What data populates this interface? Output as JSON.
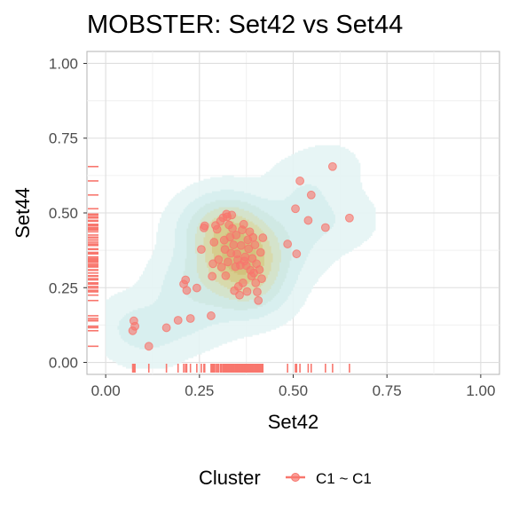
{
  "chart_data": {
    "type": "scatter",
    "title": "MOBSTER: Set42 vs Set44",
    "xlabel": "Set42",
    "ylabel": "Set44",
    "xlim": [
      -0.05,
      1.05
    ],
    "ylim": [
      -0.04,
      1.04
    ],
    "xticks": [
      0,
      0.25,
      0.5,
      0.75,
      1
    ],
    "xtick_labels": [
      "0.00",
      "0.25",
      "0.50",
      "0.75",
      "1.00"
    ],
    "yticks": [
      0,
      0.25,
      0.5,
      0.75,
      1
    ],
    "ytick_labels": [
      "0.00",
      "0.25",
      "0.50",
      "0.75",
      "1.00"
    ],
    "grid": true,
    "legend": {
      "title": "Cluster",
      "position": "bottom",
      "entries": [
        "C1 ~ C1"
      ]
    },
    "colors": {
      "points": "#F8766D",
      "density_outer": "#d6eeee",
      "density_inner": "#d8c98a"
    },
    "marginal_rugs": true,
    "series": [
      {
        "name": "C1 ~ C1",
        "points": [
          [
            0.072,
            0.106
          ],
          [
            0.075,
            0.139
          ],
          [
            0.078,
            0.121
          ],
          [
            0.115,
            0.054
          ],
          [
            0.162,
            0.116
          ],
          [
            0.193,
            0.141
          ],
          [
            0.208,
            0.262
          ],
          [
            0.213,
            0.276
          ],
          [
            0.216,
            0.241
          ],
          [
            0.226,
            0.147
          ],
          [
            0.243,
            0.249
          ],
          [
            0.255,
            0.378
          ],
          [
            0.262,
            0.45
          ],
          [
            0.264,
            0.457
          ],
          [
            0.281,
            0.156
          ],
          [
            0.284,
            0.288
          ],
          [
            0.286,
            0.33
          ],
          [
            0.289,
            0.402
          ],
          [
            0.293,
            0.458
          ],
          [
            0.297,
            0.445
          ],
          [
            0.301,
            0.344
          ],
          [
            0.306,
            0.472
          ],
          [
            0.309,
            0.319
          ],
          [
            0.313,
            0.484
          ],
          [
            0.316,
            0.409
          ],
          [
            0.318,
            0.378
          ],
          [
            0.32,
            0.29
          ],
          [
            0.322,
            0.496
          ],
          [
            0.324,
            0.487
          ],
          [
            0.326,
            0.336
          ],
          [
            0.329,
            0.46
          ],
          [
            0.332,
            0.419
          ],
          [
            0.334,
            0.365
          ],
          [
            0.336,
            0.493
          ],
          [
            0.338,
            0.448
          ],
          [
            0.341,
            0.393
          ],
          [
            0.343,
            0.24
          ],
          [
            0.346,
            0.32
          ],
          [
            0.348,
            0.426
          ],
          [
            0.35,
            0.363
          ],
          [
            0.352,
            0.343
          ],
          [
            0.354,
            0.254
          ],
          [
            0.357,
            0.225
          ],
          [
            0.359,
            0.325
          ],
          [
            0.361,
            0.391
          ],
          [
            0.364,
            0.443
          ],
          [
            0.366,
            0.266
          ],
          [
            0.368,
            0.462
          ],
          [
            0.37,
            0.339
          ],
          [
            0.372,
            0.353
          ],
          [
            0.375,
            0.324
          ],
          [
            0.377,
            0.237
          ],
          [
            0.379,
            0.41
          ],
          [
            0.381,
            0.38
          ],
          [
            0.384,
            0.437
          ],
          [
            0.386,
            0.308
          ],
          [
            0.389,
            0.289
          ],
          [
            0.391,
            0.348
          ],
          [
            0.393,
            0.418
          ],
          [
            0.395,
            0.299
          ],
          [
            0.398,
            0.393
          ],
          [
            0.4,
            0.266
          ],
          [
            0.402,
            0.33
          ],
          [
            0.404,
            0.236
          ],
          [
            0.407,
            0.207
          ],
          [
            0.41,
            0.31
          ],
          [
            0.413,
            0.368
          ],
          [
            0.416,
            0.28
          ],
          [
            0.419,
            0.417
          ],
          [
            0.485,
            0.396
          ],
          [
            0.506,
            0.514
          ],
          [
            0.509,
            0.363
          ],
          [
            0.518,
            0.607
          ],
          [
            0.54,
            0.475
          ],
          [
            0.548,
            0.56
          ],
          [
            0.586,
            0.451
          ],
          [
            0.605,
            0.655
          ],
          [
            0.65,
            0.483
          ]
        ]
      }
    ]
  }
}
